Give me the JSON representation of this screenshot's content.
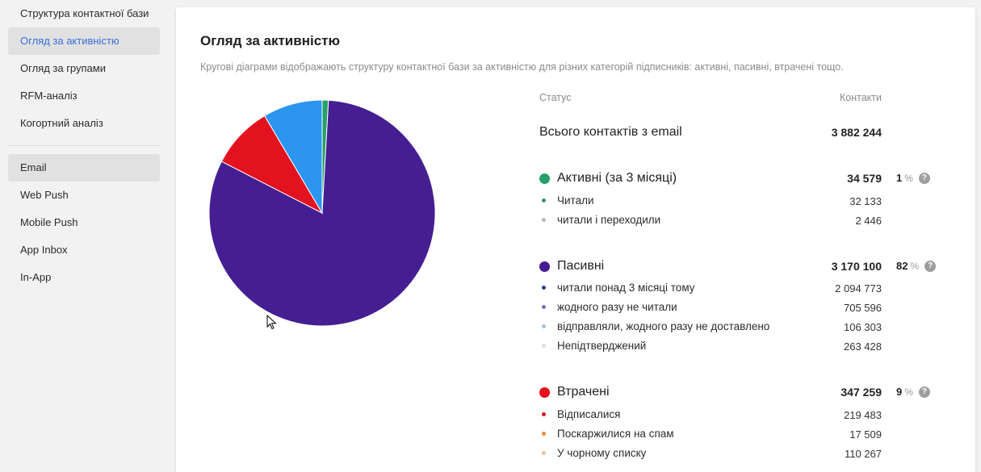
{
  "sidebar": {
    "group1": [
      {
        "label": "Структура контактної бази",
        "active": false
      },
      {
        "label": "Огляд за активністю",
        "active": true
      },
      {
        "label": "Огляд за групами",
        "active": false
      },
      {
        "label": "RFM-аналіз",
        "active": false
      },
      {
        "label": "Когортний аналіз",
        "active": false
      }
    ],
    "group2": [
      {
        "label": "Email",
        "active": true
      },
      {
        "label": "Web Push",
        "active": false
      },
      {
        "label": "Mobile Push",
        "active": false
      },
      {
        "label": "App Inbox",
        "active": false
      },
      {
        "label": "In-App",
        "active": false
      }
    ]
  },
  "card": {
    "title": "Огляд за активністю",
    "description": "Кругові діаграми відображають структуру контактної бази за активністю для різних категорій підписників: активні, пасивні, втрачені тощо."
  },
  "table": {
    "col_status": "Статус",
    "col_contacts": "Контакти",
    "total_label": "Всього контактів з email",
    "total_value": "3 882 244",
    "help_glyph": "?",
    "pct_sign": "%"
  },
  "chart_data": {
    "type": "pie",
    "total": 3882244,
    "slices": [
      {
        "name": "Активні (за 3 місяці)",
        "value": 34579,
        "percent": "1",
        "color": "#27a06a",
        "children": [
          {
            "name": "Читали",
            "value": 32133,
            "display": "32 133",
            "color": "#3f8f6b"
          },
          {
            "name": "читали і переходили",
            "value": 2446,
            "display": "2 446",
            "color": "#b9b9b9"
          }
        ],
        "display": "34 579"
      },
      {
        "name": "Пасивні",
        "value": 3170100,
        "percent": "82",
        "color": "#451e92",
        "children": [
          {
            "name": "читали понад 3 місяці тому",
            "value": 2094773,
            "display": "2 094 773",
            "color": "#2d3c9a"
          },
          {
            "name": "жодного разу не читали",
            "value": 705596,
            "display": "705 596",
            "color": "#7f6bbf"
          },
          {
            "name": "відправляли, жодного разу не доставлено",
            "value": 106303,
            "display": "106 303",
            "color": "#a9c0de"
          },
          {
            "name": "Непідтверджений",
            "value": 263428,
            "display": "263 428",
            "color": "#d9dde6"
          }
        ],
        "display": "3 170 100"
      },
      {
        "name": "Втрачені",
        "value": 347259,
        "percent": "9",
        "color": "#e3121f",
        "children": [
          {
            "name": "Відписалися",
            "value": 219483,
            "display": "219 483",
            "color": "#d7151f"
          },
          {
            "name": "Поскаржилися на спам",
            "value": 17509,
            "display": "17 509",
            "color": "#e88a3c"
          },
          {
            "name": "У чорному списку",
            "value": 110267,
            "display": "110 267",
            "color": "#edc294"
          }
        ],
        "display": "347 259"
      }
    ],
    "unlisted_slice": {
      "color": "#2b95f0"
    }
  }
}
